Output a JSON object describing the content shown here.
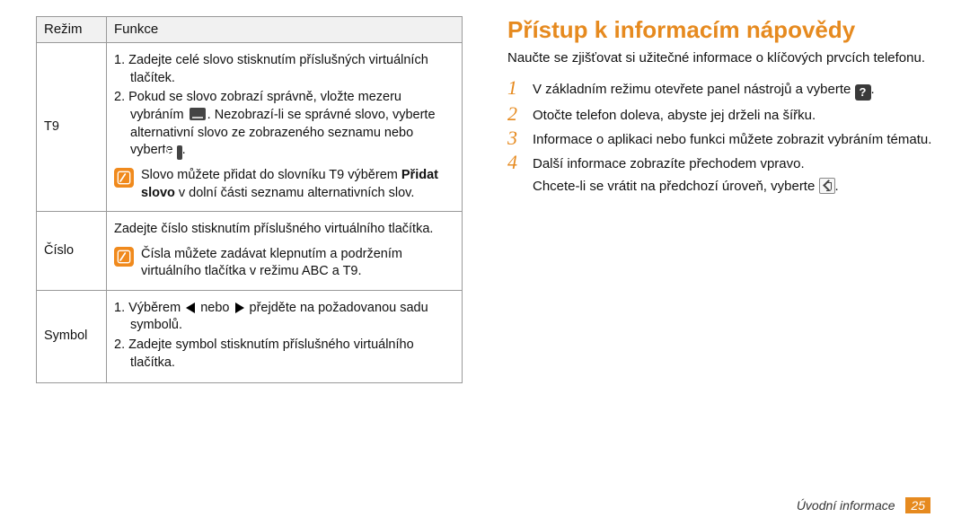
{
  "table": {
    "header_col1": "Režim",
    "header_col2": "Funkce",
    "rows": [
      {
        "label": "T9",
        "steps": [
          "1.  Zadejte celé slovo stisknutím příslušných virtuálních tlačítek.",
          "2.  Pokud se slovo zobrazí správně, vložte mezeru vybráním [SPACE]. Nezobrazí-li se správné slovo, vyberte alternativní slovo ze zobrazeného seznamu nebo vyberte [AA]."
        ],
        "tip_pre": "Slovo můžete přidat do slovníku T9 výběrem ",
        "tip_bold": "Přidat slovo",
        "tip_post": " v dolní části seznamu alternativních slov."
      },
      {
        "label": "Číslo",
        "text": "Zadejte číslo stisknutím příslušného virtuálního tlačítka.",
        "tip": "Čísla můžete zadávat klepnutím a podržením virtuálního tlačítka v režimu ABC a T9."
      },
      {
        "label": "Symbol",
        "steps": [
          "1.  Výběrem [L] nebo [R] přejděte na požadovanou sadu symbolů.",
          "2.  Zadejte symbol stisknutím příslušného virtuálního tlačítka."
        ]
      }
    ]
  },
  "right": {
    "heading": "Přístup k informacím nápovědy",
    "lead": "Naučte se zjišťovat si užitečné informace o klíčových prvcích telefonu.",
    "steps": [
      "V základním režimu otevřete panel nástrojů a vyberte [Q].",
      "Otočte telefon doleva, abyste jej drželi na šířku.",
      "Informace o aplikaci nebo funkci můžete zobrazit vybráním tématu.",
      "Další informace zobrazíte přechodem vpravo."
    ],
    "substep": "Chcete-li se vrátit na předchozí úroveň, vyberte [BACK]."
  },
  "footer": {
    "section": "Úvodní informace",
    "page": "25"
  },
  "colors": {
    "accent": "#e68a1f",
    "tip_bg": "#f08a1d"
  }
}
